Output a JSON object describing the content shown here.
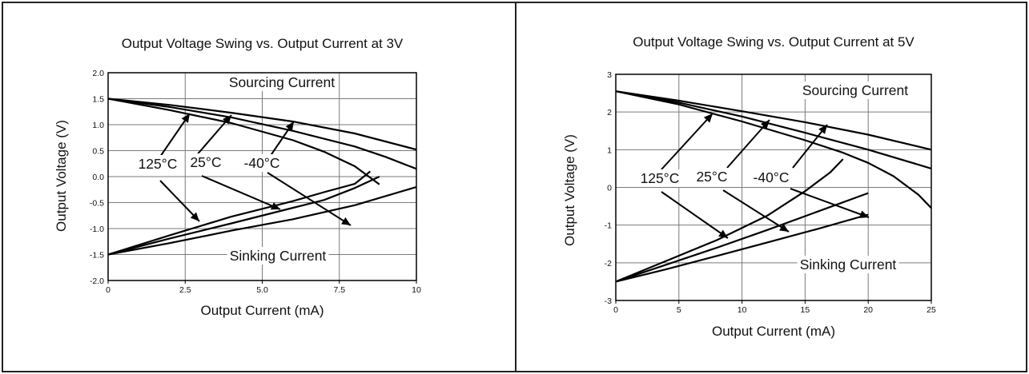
{
  "chart_data": [
    {
      "type": "line",
      "title": "Output Voltage Swing vs. Output Current at 3V",
      "xlabel": "Output Current (mA)",
      "ylabel": "Output Voltage (V)",
      "xlim": [
        0,
        10
      ],
      "ylim": [
        -2.0,
        2.0
      ],
      "xticks": [
        "0",
        "2.5",
        "5.0",
        "7.5",
        "10"
      ],
      "xtick_values": [
        0,
        2.5,
        5,
        7.5,
        10
      ],
      "yticks": [
        "2.0",
        "1.5",
        "1.0",
        "0.5",
        "0.0",
        "-0.5",
        "-1.0",
        "-1.5",
        "-2.0"
      ],
      "ytick_values": [
        2,
        1.5,
        1,
        0.5,
        0,
        -0.5,
        -1,
        -1.5,
        -2
      ],
      "grid": true,
      "region_labels": {
        "sourcing": "Sourcing Current",
        "sinking": "Sinking Current"
      },
      "temperature_labels": [
        "125°C",
        "25°C",
        "-40°C"
      ],
      "series": [
        {
          "group": "sourcing",
          "temp": "-40°C",
          "x": [
            0,
            2,
            4,
            6,
            8,
            10
          ],
          "y": [
            1.5,
            1.38,
            1.23,
            1.06,
            0.83,
            0.52
          ]
        },
        {
          "group": "sourcing",
          "temp": "25°C",
          "x": [
            0,
            2,
            4,
            6,
            8,
            9,
            10
          ],
          "y": [
            1.5,
            1.34,
            1.14,
            0.88,
            0.58,
            0.38,
            0.15
          ]
        },
        {
          "group": "sourcing",
          "temp": "125°C",
          "x": [
            0,
            2,
            4,
            6,
            7,
            8,
            8.8
          ],
          "y": [
            1.5,
            1.28,
            1.03,
            0.7,
            0.48,
            0.2,
            -0.15
          ]
        },
        {
          "group": "sinking",
          "temp": "125°C",
          "x": [
            0,
            2,
            4,
            6,
            7,
            8,
            8.5
          ],
          "y": [
            -1.5,
            -1.13,
            -0.77,
            -0.47,
            -0.3,
            -0.14,
            0.1
          ]
        },
        {
          "group": "sinking",
          "temp": "25°C",
          "x": [
            0,
            2,
            4,
            6,
            7,
            8,
            8.8
          ],
          "y": [
            -1.5,
            -1.19,
            -0.9,
            -0.6,
            -0.45,
            -0.22,
            0.0
          ]
        },
        {
          "group": "sinking",
          "temp": "-40°C",
          "x": [
            0,
            2,
            4,
            6,
            8,
            10
          ],
          "y": [
            -1.5,
            -1.28,
            -1.04,
            -0.82,
            -0.55,
            -0.2
          ]
        }
      ]
    },
    {
      "type": "line",
      "title": "Output Voltage Swing vs. Output Current at 5V",
      "xlabel": "Output Current (mA)",
      "ylabel": "Output Voltage (V)",
      "xlim": [
        0,
        25
      ],
      "ylim": [
        -3,
        3
      ],
      "xticks": [
        "0",
        "5",
        "10",
        "15",
        "20",
        "25"
      ],
      "xtick_values": [
        0,
        5,
        10,
        15,
        20,
        25
      ],
      "yticks": [
        "3",
        "2",
        "1",
        "0",
        "-1",
        "-2",
        "-3"
      ],
      "ytick_values": [
        3,
        2,
        1,
        0,
        -1,
        -2,
        -3
      ],
      "grid": true,
      "region_labels": {
        "sourcing": "Sourcing Current",
        "sinking": "Sinking Current"
      },
      "temperature_labels": [
        "125°C",
        "25°C",
        "-40°C"
      ],
      "series": [
        {
          "group": "sourcing",
          "temp": "-40°C",
          "x": [
            0,
            5,
            10,
            15,
            20,
            25
          ],
          "y": [
            2.55,
            2.3,
            2.02,
            1.73,
            1.4,
            1.0
          ]
        },
        {
          "group": "sourcing",
          "temp": "25°C",
          "x": [
            0,
            5,
            10,
            15,
            20,
            25
          ],
          "y": [
            2.55,
            2.25,
            1.88,
            1.45,
            1.0,
            0.5
          ]
        },
        {
          "group": "sourcing",
          "temp": "125°C",
          "x": [
            0,
            5,
            10,
            15,
            18,
            20,
            22,
            24,
            25
          ],
          "y": [
            2.55,
            2.2,
            1.75,
            1.25,
            0.92,
            0.65,
            0.3,
            -0.2,
            -0.55
          ]
        },
        {
          "group": "sinking",
          "temp": "125°C",
          "x": [
            0,
            4,
            8,
            12,
            15,
            17,
            18
          ],
          "y": [
            -2.5,
            -1.95,
            -1.4,
            -0.75,
            -0.1,
            0.4,
            0.75
          ]
        },
        {
          "group": "sinking",
          "temp": "25°C",
          "x": [
            0,
            4,
            8,
            12,
            16,
            20
          ],
          "y": [
            -2.5,
            -2.05,
            -1.6,
            -1.13,
            -0.64,
            -0.15
          ]
        },
        {
          "group": "sinking",
          "temp": "-40°C",
          "x": [
            0,
            4,
            8,
            12,
            16,
            20
          ],
          "y": [
            -2.5,
            -2.17,
            -1.82,
            -1.46,
            -1.1,
            -0.72
          ]
        }
      ]
    }
  ]
}
